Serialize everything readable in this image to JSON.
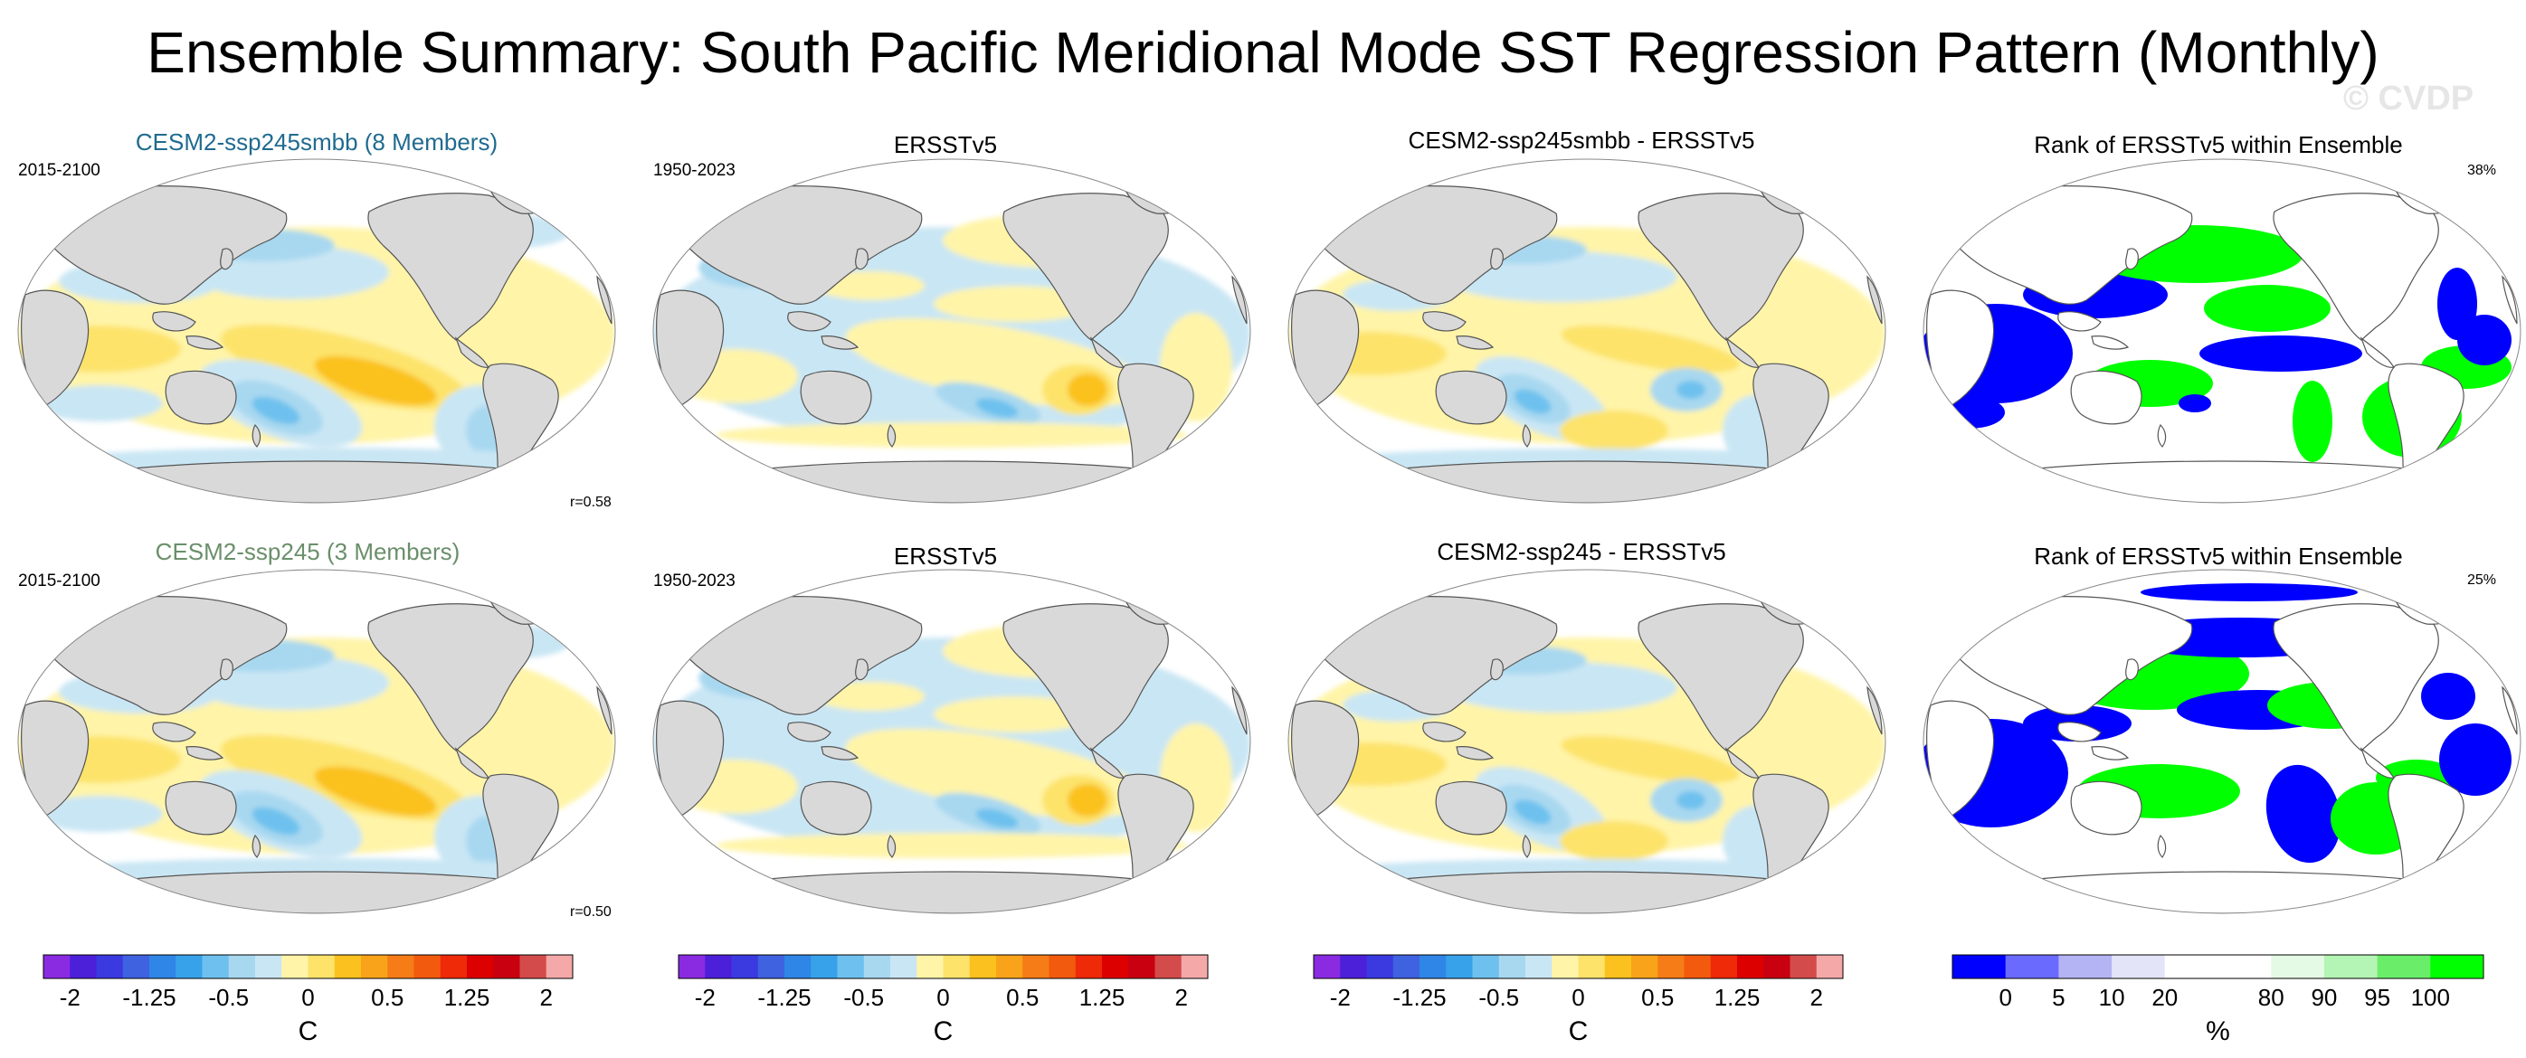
{
  "title": "Ensemble Summary: South Pacific Meridional Mode SST Regression Pattern (Monthly)",
  "watermark": "© CVDP",
  "colors": {
    "title_row1": "#1f6b8f",
    "title_row2": "#6a8f6a",
    "land": "#d9d9d9",
    "coast": "#555555"
  },
  "chart_data": [
    {
      "type": "heatmap",
      "row": 1,
      "col": 1,
      "projection": "Robinson",
      "title": "CESM2-ssp245smbb (8 Members)",
      "period": "2015-2100",
      "corner": "r=0.58",
      "field": "regression",
      "units": "C"
    },
    {
      "type": "heatmap",
      "row": 1,
      "col": 2,
      "projection": "Robinson",
      "title": "ERSSTv5",
      "period": "1950-2023",
      "corner": "",
      "field": "regression",
      "units": "C"
    },
    {
      "type": "heatmap",
      "row": 1,
      "col": 3,
      "projection": "Robinson",
      "title": "CESM2-ssp245smbb - ERSSTv5",
      "period": "",
      "corner": "",
      "field": "regression",
      "units": "C"
    },
    {
      "type": "heatmap",
      "row": 1,
      "col": 4,
      "projection": "Robinson",
      "title": "Rank of ERSSTv5 within Ensemble",
      "period": "",
      "corner": "38%",
      "field": "rank",
      "units": "%"
    },
    {
      "type": "heatmap",
      "row": 2,
      "col": 1,
      "projection": "Robinson",
      "title": "CESM2-ssp245 (3 Members)",
      "period": "2015-2100",
      "corner": "r=0.50",
      "field": "regression",
      "units": "C"
    },
    {
      "type": "heatmap",
      "row": 2,
      "col": 2,
      "projection": "Robinson",
      "title": "ERSSTv5",
      "period": "1950-2023",
      "corner": "",
      "field": "regression",
      "units": "C"
    },
    {
      "type": "heatmap",
      "row": 2,
      "col": 3,
      "projection": "Robinson",
      "title": "CESM2-ssp245 - ERSSTv5",
      "period": "",
      "corner": "",
      "field": "regression",
      "units": "C"
    },
    {
      "type": "heatmap",
      "row": 2,
      "col": 4,
      "projection": "Robinson",
      "title": "Rank of ERSSTv5 within Ensemble",
      "period": "",
      "corner": "25%",
      "field": "rank",
      "units": "%"
    }
  ],
  "colorbars": {
    "sst": {
      "unit": "C",
      "range": [
        -2,
        2
      ],
      "colors": [
        "#8a2be2",
        "#4b20d8",
        "#3a3ae0",
        "#3f62e0",
        "#2f86e6",
        "#37a2ea",
        "#6ec1ee",
        "#a8d8f0",
        "#c9e6f4",
        "#fff4a8",
        "#fde36a",
        "#fbc11e",
        "#f9a31a",
        "#f57c16",
        "#f25a0e",
        "#ee2a08",
        "#dd0000",
        "#c80010",
        "#d44b4b",
        "#f5a8a8"
      ],
      "tick_labels": [
        "-2",
        "-1.25",
        "-0.5",
        "0",
        "0.5",
        "1.25",
        "2"
      ],
      "tick_boundaries": [
        1,
        4,
        7,
        10,
        13,
        16,
        19
      ]
    },
    "rank": {
      "unit": "%",
      "colors": [
        "#0000ff",
        "#6a6aff",
        "#b4b4f4",
        "#e4e4f8",
        "#ffffff",
        "#ffffff",
        "#e4fae4",
        "#b4f4b4",
        "#6aee6a",
        "#00ff00"
      ],
      "tick_labels": [
        "0",
        "5",
        "10",
        "20",
        "80",
        "90",
        "95",
        "100"
      ],
      "tick_boundaries": [
        1,
        2,
        3,
        4,
        6,
        7,
        8,
        9
      ]
    }
  }
}
